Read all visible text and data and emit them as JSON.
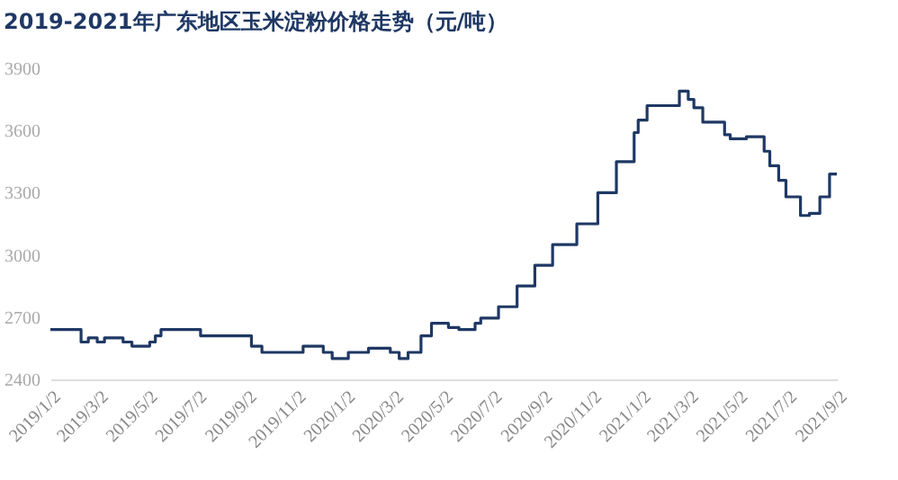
{
  "chart_data": {
    "type": "step",
    "title": "2019-2021年广东地区玉米淀粉价格走势（元/吨）",
    "x": [
      "2019-01-02",
      "2019-02-09",
      "2019-02-18",
      "2019-03-01",
      "2019-03-10",
      "2019-04-02",
      "2019-04-13",
      "2019-05-05",
      "2019-05-12",
      "2019-05-19",
      "2019-07-07",
      "2019-09-08",
      "2019-09-21",
      "2019-11-11",
      "2019-12-06",
      "2019-12-17",
      "2020-01-06",
      "2020-01-31",
      "2020-02-27",
      "2020-03-09",
      "2020-03-20",
      "2020-04-05",
      "2020-04-18",
      "2020-05-09",
      "2020-05-22",
      "2020-06-11",
      "2020-06-18",
      "2020-07-10",
      "2020-08-02",
      "2020-08-24",
      "2020-09-15",
      "2020-10-15",
      "2020-11-10",
      "2020-12-03",
      "2020-12-25",
      "2020-12-30",
      "2021-01-10",
      "2021-02-19",
      "2021-03-02",
      "2021-03-09",
      "2021-03-20",
      "2021-04-16",
      "2021-04-23",
      "2021-05-13",
      "2021-06-04",
      "2021-06-11",
      "2021-06-22",
      "2021-07-01",
      "2021-07-19",
      "2021-07-30",
      "2021-08-12",
      "2021-08-24",
      "2021-09-02"
    ],
    "series": [
      {
        "color": "#1f3864",
        "values": [
          2640,
          2580,
          2600,
          2580,
          2600,
          2580,
          2560,
          2580,
          2610,
          2640,
          2610,
          2560,
          2530,
          2560,
          2530,
          2500,
          2530,
          2550,
          2530,
          2500,
          2530,
          2610,
          2670,
          2650,
          2640,
          2670,
          2695,
          2750,
          2850,
          2950,
          3050,
          3150,
          3300,
          3450,
          3590,
          3650,
          3720,
          3790,
          3750,
          3710,
          3640,
          3580,
          3560,
          3570,
          3500,
          3430,
          3360,
          3280,
          3190,
          3200,
          3280,
          3390,
          3390
        ]
      }
    ],
    "xlim": [
      "2019-01-02",
      "2021-09-02"
    ],
    "xticks": [
      {
        "value": "2019-01-02",
        "label": "2019/1/2"
      },
      {
        "value": "2019-03-02",
        "label": "2019/3/2"
      },
      {
        "value": "2019-05-02",
        "label": "2019/5/2"
      },
      {
        "value": "2019-07-02",
        "label": "2019/7/2"
      },
      {
        "value": "2019-09-02",
        "label": "2019/9/2"
      },
      {
        "value": "2019-11-02",
        "label": "2019/11/2"
      },
      {
        "value": "2020-01-02",
        "label": "2020/1/2"
      },
      {
        "value": "2020-03-02",
        "label": "2020/3/2"
      },
      {
        "value": "2020-05-02",
        "label": "2020/5/2"
      },
      {
        "value": "2020-07-02",
        "label": "2020/7/2"
      },
      {
        "value": "2020-09-02",
        "label": "2020/9/2"
      },
      {
        "value": "2020-11-02",
        "label": "2020/11/2"
      },
      {
        "value": "2021-01-02",
        "label": "2021/1/2"
      },
      {
        "value": "2021-03-02",
        "label": "2021/3/2"
      },
      {
        "value": "2021-05-02",
        "label": "2021/5/2"
      },
      {
        "value": "2021-07-02",
        "label": "2021/7/2"
      },
      {
        "value": "2021-09-02",
        "label": "2021/9/2"
      }
    ],
    "ylim": [
      2400,
      3900
    ],
    "yticks": [
      2400,
      2700,
      3000,
      3300,
      3600,
      3900
    ],
    "grid": false
  }
}
